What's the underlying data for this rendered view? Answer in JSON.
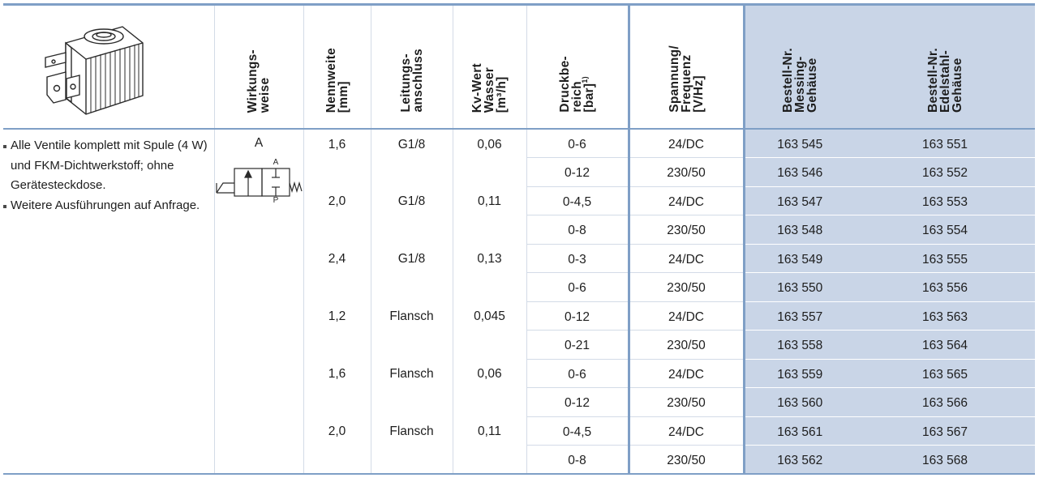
{
  "headers": {
    "mode": "Wirkungs-\nweise",
    "nominal": "Nennweite\n[mm]",
    "connection": "Leitungs-\nanschluss",
    "kv": "Kv-Wert\nWasser\n[m³/h]",
    "pressure": "Druckbe-\nreich\n[bar]",
    "pressure_sup": "1)",
    "voltage": "Spannung/\nFrequenz\n[V/Hz]",
    "brass": "Bestell-Nr.\nMessing-\nGehäuse",
    "steel": "Bestell-Nr.\nEdelstahl-\nGehäuse"
  },
  "notes": [
    "Alle Ventile komplett mit Spule (4 W) und FKM-Dichtwerkstoff; ohne Gerätesteckdose.",
    "Weitere Ausführungen auf Anfrage."
  ],
  "mode": {
    "letter": "A",
    "port_top": "A",
    "port_bottom": "P"
  },
  "groups": [
    {
      "nominal": "1,6",
      "connection": "G1/8",
      "kv": "0,06",
      "rows": [
        {
          "pressure": "0-6",
          "voltage": "24/DC",
          "brass": "163 545",
          "steel": "163 551"
        },
        {
          "pressure": "0-12",
          "voltage": "230/50",
          "brass": "163 546",
          "steel": "163 552"
        }
      ]
    },
    {
      "nominal": "2,0",
      "connection": "G1/8",
      "kv": "0,11",
      "rows": [
        {
          "pressure": "0-4,5",
          "voltage": "24/DC",
          "brass": "163 547",
          "steel": "163 553"
        },
        {
          "pressure": "0-8",
          "voltage": "230/50",
          "brass": "163 548",
          "steel": "163 554"
        }
      ]
    },
    {
      "nominal": "2,4",
      "connection": "G1/8",
      "kv": "0,13",
      "rows": [
        {
          "pressure": "0-3",
          "voltage": "24/DC",
          "brass": "163 549",
          "steel": "163 555"
        },
        {
          "pressure": "0-6",
          "voltage": "230/50",
          "brass": "163 550",
          "steel": "163 556"
        }
      ]
    },
    {
      "nominal": "1,2",
      "connection": "Flansch",
      "kv": "0,045",
      "rows": [
        {
          "pressure": "0-12",
          "voltage": "24/DC",
          "brass": "163 557",
          "steel": "163 563"
        },
        {
          "pressure": "0-21",
          "voltage": "230/50",
          "brass": "163 558",
          "steel": "163 564"
        }
      ]
    },
    {
      "nominal": "1,6",
      "connection": "Flansch",
      "kv": "0,06",
      "rows": [
        {
          "pressure": "0-6",
          "voltage": "24/DC",
          "brass": "163 559",
          "steel": "163 565"
        },
        {
          "pressure": "0-12",
          "voltage": "230/50",
          "brass": "163 560",
          "steel": "163 566"
        }
      ]
    },
    {
      "nominal": "2,0",
      "connection": "Flansch",
      "kv": "0,11",
      "rows": [
        {
          "pressure": "0-4,5",
          "voltage": "24/DC",
          "brass": "163 561",
          "steel": "163 567"
        },
        {
          "pressure": "0-8",
          "voltage": "230/50",
          "brass": "163 562",
          "steel": "163 568"
        }
      ]
    }
  ],
  "colors": {
    "accent": "#7f9fc6",
    "order_bg": "#c9d5e7",
    "thin_line": "#d3dbe7"
  },
  "icons": {
    "product": "solenoid-coil-icon",
    "mode": "valve-2-2-symbol-icon"
  }
}
